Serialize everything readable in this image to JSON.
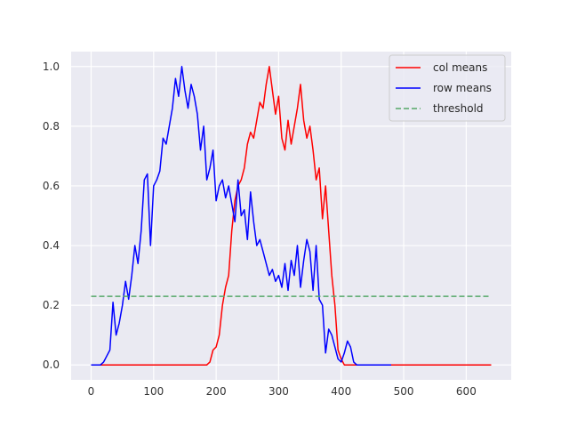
{
  "chart_data": {
    "type": "line",
    "title": "",
    "xlabel": "",
    "ylabel": "",
    "xlim": [
      -32,
      672
    ],
    "ylim": [
      -0.05,
      1.05
    ],
    "xticks": [
      0,
      100,
      200,
      300,
      400,
      500,
      600
    ],
    "yticks": [
      0.0,
      0.2,
      0.4,
      0.6,
      0.8,
      1.0
    ],
    "xtick_labels": [
      "0",
      "100",
      "200",
      "300",
      "400",
      "500",
      "600"
    ],
    "ytick_labels": [
      "0.0",
      "0.2",
      "0.4",
      "0.6",
      "0.8",
      "1.0"
    ],
    "grid": true,
    "legend_position": "upper right",
    "series": [
      {
        "name": "col means",
        "color": "#ff0000",
        "style": "solid",
        "x": [
          0,
          185,
          190,
          195,
          200,
          205,
          210,
          215,
          220,
          225,
          230,
          235,
          240,
          245,
          250,
          255,
          260,
          265,
          270,
          275,
          280,
          285,
          290,
          295,
          300,
          305,
          310,
          315,
          320,
          325,
          330,
          335,
          340,
          345,
          350,
          355,
          360,
          365,
          370,
          375,
          380,
          385,
          390,
          395,
          400,
          405,
          410,
          415,
          420,
          640
        ],
        "y": [
          0.0,
          0.0,
          0.01,
          0.05,
          0.06,
          0.1,
          0.2,
          0.26,
          0.3,
          0.45,
          0.55,
          0.6,
          0.62,
          0.66,
          0.74,
          0.78,
          0.76,
          0.82,
          0.88,
          0.86,
          0.94,
          1.0,
          0.92,
          0.84,
          0.9,
          0.76,
          0.72,
          0.82,
          0.74,
          0.8,
          0.86,
          0.94,
          0.82,
          0.76,
          0.8,
          0.72,
          0.62,
          0.66,
          0.49,
          0.6,
          0.45,
          0.3,
          0.2,
          0.05,
          0.02,
          0.0,
          0.0,
          0.0,
          0.0,
          0.0
        ]
      },
      {
        "name": "row means",
        "color": "#0000ff",
        "style": "solid",
        "x": [
          0,
          15,
          20,
          25,
          30,
          35,
          40,
          45,
          50,
          55,
          60,
          65,
          70,
          75,
          80,
          85,
          90,
          95,
          100,
          105,
          110,
          115,
          120,
          125,
          130,
          135,
          140,
          145,
          150,
          155,
          160,
          165,
          170,
          175,
          180,
          185,
          190,
          195,
          200,
          205,
          210,
          215,
          220,
          225,
          230,
          235,
          240,
          245,
          250,
          255,
          260,
          265,
          270,
          275,
          280,
          285,
          290,
          295,
          300,
          305,
          310,
          315,
          320,
          325,
          330,
          335,
          340,
          345,
          350,
          355,
          360,
          365,
          370,
          375,
          380,
          385,
          390,
          395,
          400,
          405,
          410,
          415,
          420,
          425,
          430,
          435,
          440,
          480
        ],
        "y": [
          0.0,
          0.0,
          0.01,
          0.03,
          0.05,
          0.21,
          0.1,
          0.14,
          0.2,
          0.28,
          0.22,
          0.3,
          0.4,
          0.34,
          0.45,
          0.62,
          0.64,
          0.4,
          0.6,
          0.62,
          0.65,
          0.76,
          0.74,
          0.8,
          0.86,
          0.96,
          0.9,
          1.0,
          0.92,
          0.86,
          0.94,
          0.9,
          0.84,
          0.72,
          0.8,
          0.62,
          0.66,
          0.72,
          0.55,
          0.6,
          0.62,
          0.56,
          0.6,
          0.54,
          0.48,
          0.62,
          0.5,
          0.52,
          0.42,
          0.58,
          0.48,
          0.4,
          0.42,
          0.38,
          0.34,
          0.3,
          0.32,
          0.28,
          0.3,
          0.26,
          0.34,
          0.25,
          0.35,
          0.3,
          0.4,
          0.26,
          0.35,
          0.42,
          0.38,
          0.25,
          0.4,
          0.22,
          0.2,
          0.04,
          0.12,
          0.1,
          0.06,
          0.02,
          0.01,
          0.04,
          0.08,
          0.06,
          0.01,
          0.0,
          0.0,
          0.0,
          0.0,
          0.0
        ]
      },
      {
        "name": "threshold",
        "color": "#55a868",
        "style": "dashed",
        "x": [
          0,
          640
        ],
        "y": [
          0.23,
          0.23
        ]
      }
    ]
  }
}
